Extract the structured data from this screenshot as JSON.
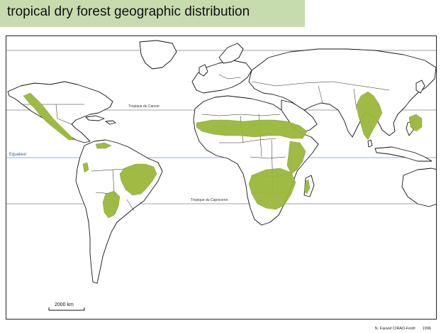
{
  "title": "tropical dry forest geographic distribution",
  "map": {
    "labels": {
      "tropic_cancer": "Tropique du Cancer",
      "equator": "Equateur",
      "tropic_capricorn": "Tropique du Capricorne"
    },
    "scale": "2000 km",
    "credit_author": "N. Fauvet CIRAD-Forêt",
    "credit_year": "1996"
  },
  "colors": {
    "title_bg": "#c6dcae",
    "forest": "#9ab83a",
    "equator_line": "#2a58a8"
  }
}
